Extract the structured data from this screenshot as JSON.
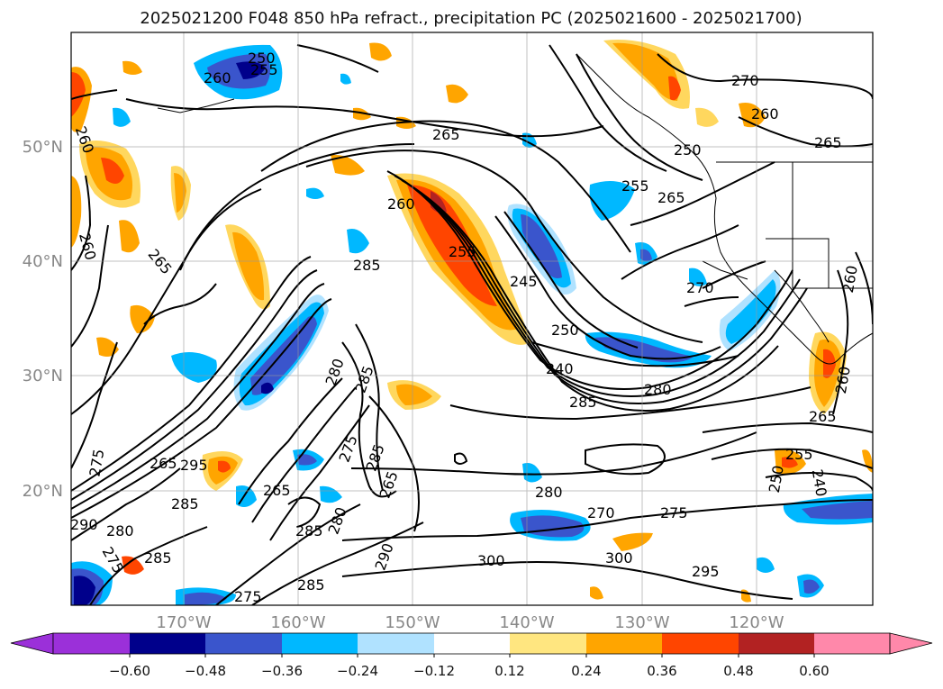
{
  "title": "2025021200 F048 850 hPa refract., precipitation PC (2025021600 - 2025021700)",
  "lat_labels": [
    "50°N",
    "40°N",
    "30°N",
    "20°N"
  ],
  "lon_labels": [
    "170°W",
    "160°W",
    "150°W",
    "140°W",
    "130°W",
    "120°W"
  ],
  "colorbar": {
    "colors": [
      "#9b30d9",
      "#00008b",
      "#3a55cc",
      "#00b8ff",
      "#b0e2ff",
      "#ffffff",
      "#ffe680",
      "#ffa500",
      "#ff4500",
      "#b22222",
      "#ff88aa"
    ],
    "ticks": [
      "−0.60",
      "−0.48",
      "−0.36",
      "−0.24",
      "−0.12",
      "0.12",
      "0.24",
      "0.36",
      "0.48",
      "0.60"
    ]
  },
  "contour_labels": [
    "250",
    "255",
    "260",
    "260",
    "265",
    "270",
    "260",
    "265",
    "250",
    "255",
    "265",
    "260",
    "260",
    "265",
    "285",
    "255",
    "245",
    "250",
    "240",
    "285",
    "280",
    "270",
    "260",
    "260",
    "265",
    "255",
    "240",
    "250",
    "280",
    "285",
    "275",
    "265",
    "295",
    "285",
    "265",
    "285",
    "280",
    "275",
    "285",
    "290",
    "265",
    "280",
    "275",
    "270",
    "300",
    "285",
    "275",
    "300",
    "295",
    "290",
    "280",
    "275",
    "285"
  ]
}
